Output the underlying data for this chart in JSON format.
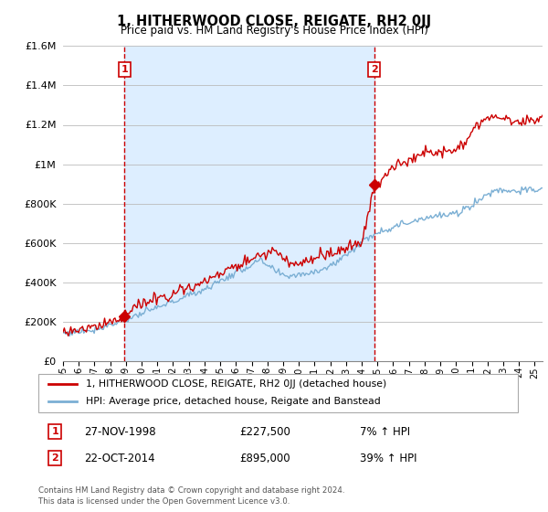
{
  "title": "1, HITHERWOOD CLOSE, REIGATE, RH2 0JJ",
  "subtitle": "Price paid vs. HM Land Registry's House Price Index (HPI)",
  "property_label": "1, HITHERWOOD CLOSE, REIGATE, RH2 0JJ (detached house)",
  "hpi_label": "HPI: Average price, detached house, Reigate and Banstead",
  "transaction1_date": "27-NOV-1998",
  "transaction1_price": 227500,
  "transaction1_hpi": "7% ↑ HPI",
  "transaction2_date": "22-OCT-2014",
  "transaction2_price": 895000,
  "transaction2_hpi": "39% ↑ HPI",
  "footer": "Contains HM Land Registry data © Crown copyright and database right 2024.\nThis data is licensed under the Open Government Licence v3.0.",
  "property_color": "#cc0000",
  "hpi_color": "#7bafd4",
  "vline_color": "#cc0000",
  "shade_color": "#ddeeff",
  "ylim": [
    0,
    1600000
  ],
  "yticks": [
    0,
    200000,
    400000,
    600000,
    800000,
    1000000,
    1200000,
    1400000,
    1600000
  ],
  "ytick_labels": [
    "£0",
    "£200K",
    "£400K",
    "£600K",
    "£800K",
    "£1M",
    "£1.2M",
    "£1.4M",
    "£1.6M"
  ],
  "xstart": 1995.0,
  "xend": 2025.5,
  "hpi_keypoints_t": [
    1995.0,
    1997.0,
    1999.0,
    2001.0,
    2004.0,
    2007.5,
    2009.0,
    2010.5,
    2012.0,
    2014.8,
    2016.0,
    2018.0,
    2020.0,
    2021.5,
    2022.5,
    2024.0,
    2025.5
  ],
  "hpi_keypoints_v": [
    140000,
    160000,
    210000,
    270000,
    365000,
    510000,
    430000,
    445000,
    480000,
    650000,
    680000,
    730000,
    745000,
    820000,
    870000,
    865000,
    870000
  ],
  "prop_keypoints_t": [
    1995.0,
    1997.0,
    1998.9,
    2000.0,
    2004.0,
    2007.5,
    2008.5,
    2009.5,
    2012.0,
    2014.0,
    2014.83,
    2016.0,
    2018.0,
    2020.0,
    2021.5,
    2022.5,
    2023.0,
    2024.0,
    2025.5
  ],
  "prop_keypoints_v": [
    145000,
    170000,
    228000,
    290000,
    400000,
    540000,
    560000,
    490000,
    545000,
    595000,
    895000,
    980000,
    1060000,
    1070000,
    1200000,
    1260000,
    1230000,
    1210000,
    1235000
  ],
  "t1": 1998.917,
  "t2": 2014.792,
  "noise_hpi": 9000,
  "noise_prop": 14000,
  "seed": 77
}
